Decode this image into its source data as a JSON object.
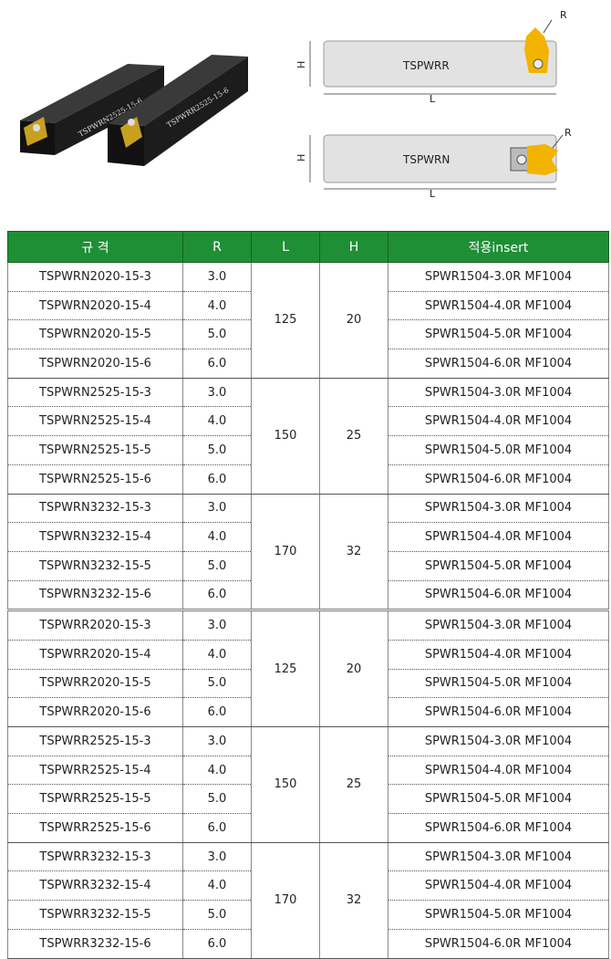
{
  "photo": {
    "labels": [
      "TSPWRN2525-15-6",
      "TSPWRR2525-15-6"
    ]
  },
  "diagrams": [
    {
      "name": "TSPWRR",
      "r": "R",
      "h": "H",
      "l": "L"
    },
    {
      "name": "TSPWRN",
      "r": "R",
      "h": "H",
      "l": "L"
    }
  ],
  "table": {
    "header": [
      "규 격",
      "R",
      "L",
      "H",
      "적용insert"
    ],
    "groups": [
      {
        "L": "125",
        "H": "20",
        "rows": [
          [
            "TSPWRN2020-15-3",
            "3.0",
            "SPWR1504-3.0R MF1004"
          ],
          [
            "TSPWRN2020-15-4",
            "4.0",
            "SPWR1504-4.0R MF1004"
          ],
          [
            "TSPWRN2020-15-5",
            "5.0",
            "SPWR1504-5.0R MF1004"
          ],
          [
            "TSPWRN2020-15-6",
            "6.0",
            "SPWR1504-6.0R MF1004"
          ]
        ]
      },
      {
        "L": "150",
        "H": "25",
        "rows": [
          [
            "TSPWRN2525-15-3",
            "3.0",
            "SPWR1504-3.0R MF1004"
          ],
          [
            "TSPWRN2525-15-4",
            "4.0",
            "SPWR1504-4.0R MF1004"
          ],
          [
            "TSPWRN2525-15-5",
            "5.0",
            "SPWR1504-5.0R MF1004"
          ],
          [
            "TSPWRN2525-15-6",
            "6.0",
            "SPWR1504-6.0R MF1004"
          ]
        ]
      },
      {
        "L": "170",
        "H": "32",
        "rows": [
          [
            "TSPWRN3232-15-3",
            "3.0",
            "SPWR1504-3.0R MF1004"
          ],
          [
            "TSPWRN3232-15-4",
            "4.0",
            "SPWR1504-4.0R MF1004"
          ],
          [
            "TSPWRN3232-15-5",
            "5.0",
            "SPWR1504-5.0R MF1004"
          ],
          [
            "TSPWRN3232-15-6",
            "6.0",
            "SPWR1504-6.0R MF1004"
          ]
        ]
      },
      {
        "L": "125",
        "H": "20",
        "rows": [
          [
            "TSPWRR2020-15-3",
            "3.0",
            "SPWR1504-3.0R MF1004"
          ],
          [
            "TSPWRR2020-15-4",
            "4.0",
            "SPWR1504-4.0R MF1004"
          ],
          [
            "TSPWRR2020-15-5",
            "5.0",
            "SPWR1504-5.0R MF1004"
          ],
          [
            "TSPWRR2020-15-6",
            "6.0",
            "SPWR1504-6.0R MF1004"
          ]
        ]
      },
      {
        "L": "150",
        "H": "25",
        "rows": [
          [
            "TSPWRR2525-15-3",
            "3.0",
            "SPWR1504-3.0R MF1004"
          ],
          [
            "TSPWRR2525-15-4",
            "4.0",
            "SPWR1504-4.0R MF1004"
          ],
          [
            "TSPWRR2525-15-5",
            "5.0",
            "SPWR1504-5.0R MF1004"
          ],
          [
            "TSPWRR2525-15-6",
            "6.0",
            "SPWR1504-6.0R MF1004"
          ]
        ]
      },
      {
        "L": "170",
        "H": "32",
        "rows": [
          [
            "TSPWRR3232-15-3",
            "3.0",
            "SPWR1504-3.0R MF1004"
          ],
          [
            "TSPWRR3232-15-4",
            "4.0",
            "SPWR1504-4.0R MF1004"
          ],
          [
            "TSPWRR3232-15-5",
            "5.0",
            "SPWR1504-5.0R MF1004"
          ],
          [
            "TSPWRR3232-15-6",
            "6.0",
            "SPWR1504-6.0R MF1004"
          ]
        ]
      }
    ]
  }
}
